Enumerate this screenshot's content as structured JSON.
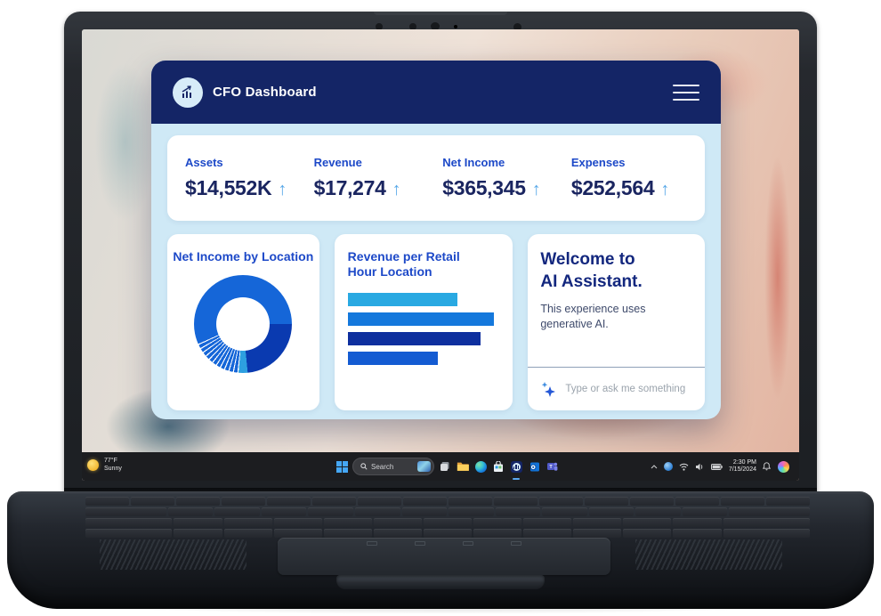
{
  "app": {
    "title": "CFO Dashboard",
    "kpis": [
      {
        "label": "Assets",
        "value": "$14,552K",
        "trend": "↑"
      },
      {
        "label": "Revenue",
        "value": "$17,274",
        "trend": "↑"
      },
      {
        "label": "Net Income",
        "value": "$365,345",
        "trend": "↑"
      },
      {
        "label": "Expenses",
        "value": "$252,564",
        "trend": "↑"
      }
    ],
    "donut_card": {
      "title": "Net Income by Location"
    },
    "bar_card": {
      "title_line1": "Revenue per Retail",
      "title_line2": "Hour Location"
    },
    "assistant_card": {
      "heading_line1": "Welcome to",
      "heading_line2": "AI Assistant.",
      "body": "This experience uses generative AI.",
      "input_placeholder": "Type or ask me something"
    }
  },
  "chart_data": [
    {
      "type": "pie",
      "style": "donut",
      "title": "Net Income by Location",
      "start_angle": 250,
      "legend": "none",
      "segments": [
        {
          "value": 55.5,
          "color": "#1566d8"
        },
        {
          "value": 23.5,
          "color": "#0a3ab0"
        },
        {
          "value": 3.0,
          "color": "#2d9fe0"
        },
        {
          "value": 1.5,
          "color": "#1566d8",
          "gap": true
        },
        {
          "value": 1.5,
          "color": "#1566d8",
          "gap": true
        },
        {
          "value": 1.5,
          "color": "#1566d8",
          "gap": true
        },
        {
          "value": 1.5,
          "color": "#1566d8",
          "gap": true
        },
        {
          "value": 1.5,
          "color": "#1566d8",
          "gap": true
        },
        {
          "value": 1.5,
          "color": "#1566d8",
          "gap": true
        },
        {
          "value": 1.5,
          "color": "#1566d8",
          "gap": true
        },
        {
          "value": 1.5,
          "color": "#1566d8",
          "gap": true
        },
        {
          "value": 1.5,
          "color": "#1566d8",
          "gap": true
        },
        {
          "value": 1.5,
          "color": "#1566d8",
          "gap": true
        },
        {
          "value": 1.5,
          "color": "#1566d8",
          "gap": true
        },
        {
          "value": 1.5,
          "color": "#1566d8",
          "gap": true
        }
      ]
    },
    {
      "type": "bar",
      "orientation": "horizontal",
      "title": "Revenue per Retail Hour Location",
      "values": [
        75,
        100,
        91,
        62
      ],
      "colors": [
        "#29a9e2",
        "#1478dc",
        "#0e2f9e",
        "#145bd2"
      ],
      "axis_labels": "none",
      "grid": false
    }
  ],
  "taskbar": {
    "weather": {
      "temp": "77°F",
      "condition": "Sunny"
    },
    "search": {
      "placeholder": "Search"
    },
    "tray": {
      "time": "2:30 PM",
      "date": "7/15/2024"
    }
  }
}
